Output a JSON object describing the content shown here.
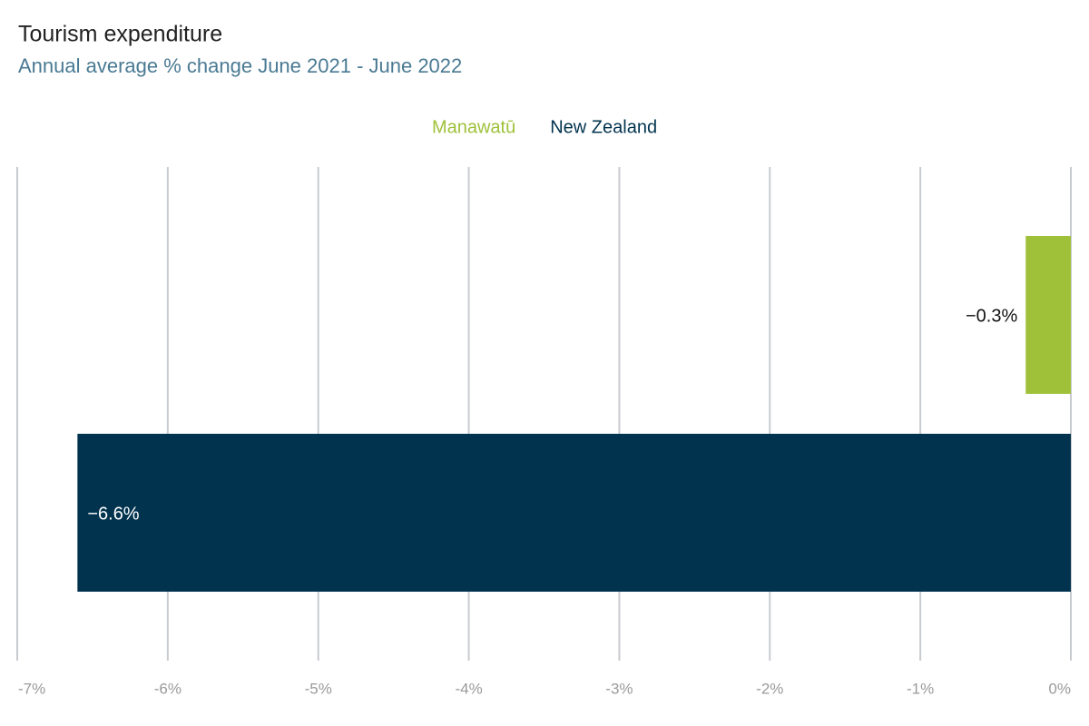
{
  "chart_data": {
    "type": "bar",
    "orientation": "horizontal",
    "title": "Tourism expenditure",
    "subtitle": "Annual average % change June 2021 - June 2022",
    "series": [
      {
        "name": "Manawatū",
        "color": "#9fc13a",
        "values": [
          -0.3
        ],
        "value_labels": [
          "−0.3%"
        ]
      },
      {
        "name": "New Zealand",
        "color": "#01334f",
        "values": [
          -6.6
        ],
        "value_labels": [
          "−6.6%"
        ]
      }
    ],
    "xlim": [
      -7,
      0
    ],
    "xticks": [
      {
        "value": -7,
        "label": "-7%"
      },
      {
        "value": -6,
        "label": "-6%"
      },
      {
        "value": -5,
        "label": "-5%"
      },
      {
        "value": -4,
        "label": "-4%"
      },
      {
        "value": -3,
        "label": "-3%"
      },
      {
        "value": -2,
        "label": "-2%"
      },
      {
        "value": -1,
        "label": "-1%"
      },
      {
        "value": 0,
        "label": "0%"
      }
    ],
    "grid": true
  }
}
